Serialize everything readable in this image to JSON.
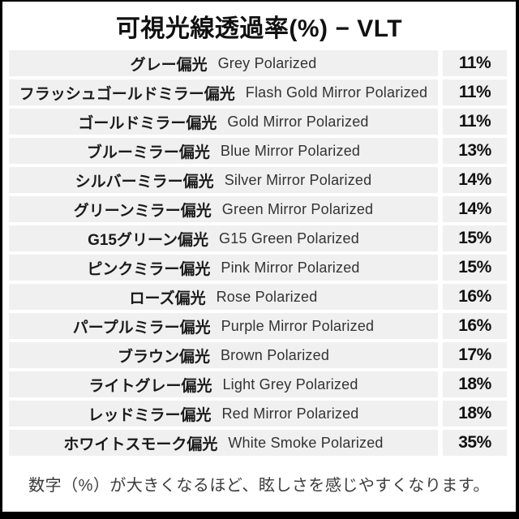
{
  "header": {
    "title": "可視光線透過率(%) − VLT"
  },
  "footer": {
    "note": "数字（%）が大きくなるほど、眩しさを感じやすくなります。"
  },
  "chart_data": {
    "type": "table",
    "title": "可視光線透過率(%) − VLT",
    "value_unit": "%",
    "rows": [
      {
        "jp": "グレー偏光",
        "en": "Grey Polarized",
        "vlt_percent": 11,
        "vlt_label": "11%"
      },
      {
        "jp": "フラッシュゴールドミラー偏光",
        "en": "Flash Gold Mirror Polarized",
        "vlt_percent": 11,
        "vlt_label": "11%"
      },
      {
        "jp": "ゴールドミラー偏光",
        "en": "Gold Mirror Polarized",
        "vlt_percent": 11,
        "vlt_label": "11%"
      },
      {
        "jp": "ブルーミラー偏光",
        "en": "Blue Mirror Polarized",
        "vlt_percent": 13,
        "vlt_label": "13%"
      },
      {
        "jp": "シルバーミラー偏光",
        "en": "Silver Mirror Polarized",
        "vlt_percent": 14,
        "vlt_label": "14%"
      },
      {
        "jp": "グリーンミラー偏光",
        "en": "Green Mirror Polarized",
        "vlt_percent": 14,
        "vlt_label": "14%"
      },
      {
        "jp": "G15グリーン偏光",
        "en": "G15 Green Polarized",
        "vlt_percent": 15,
        "vlt_label": "15%"
      },
      {
        "jp": "ピンクミラー偏光",
        "en": "Pink Mirror Polarized",
        "vlt_percent": 15,
        "vlt_label": "15%"
      },
      {
        "jp": "ローズ偏光",
        "en": "Rose Polarized",
        "vlt_percent": 16,
        "vlt_label": "16%"
      },
      {
        "jp": "パープルミラー偏光",
        "en": "Purple Mirror Polarized",
        "vlt_percent": 16,
        "vlt_label": "16%"
      },
      {
        "jp": "ブラウン偏光",
        "en": "Brown Polarized",
        "vlt_percent": 17,
        "vlt_label": "17%"
      },
      {
        "jp": "ライトグレー偏光",
        "en": "Light Grey Polarized",
        "vlt_percent": 18,
        "vlt_label": "18%"
      },
      {
        "jp": "レッドミラー偏光",
        "en": "Red Mirror Polarized",
        "vlt_percent": 18,
        "vlt_label": "18%"
      },
      {
        "jp": "ホワイトスモーク偏光",
        "en": "White Smoke Polarized",
        "vlt_percent": 35,
        "vlt_label": "35%"
      }
    ],
    "note": "数字（%）が大きくなるほど、眩しさを感じやすくなります。"
  },
  "colors": {
    "frame_border": "#000000",
    "row_background": "#f0f0f0",
    "title_text": "#111111",
    "jp_text": "#1b1b1b",
    "en_text": "#333333",
    "value_text": "#111111",
    "note_text": "#3d3d3d",
    "page_background": "#ffffff"
  }
}
